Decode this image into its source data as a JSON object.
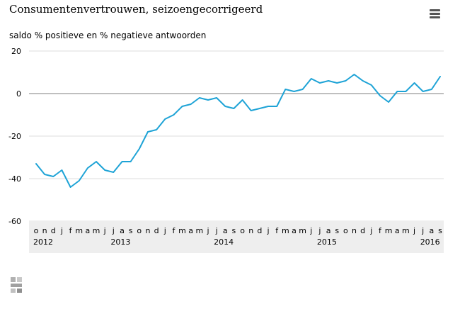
{
  "header": {
    "title": "Consumentenvertrouwen, seizoengecorrigeerd",
    "menu_icon": "hamburger-menu-icon"
  },
  "colors": {
    "series": "#1ea3d6",
    "zero_line": "#999999",
    "grid": "#dddddd",
    "axis_band": "#eeeeee"
  },
  "chart_data": {
    "type": "line",
    "title": "Consumentenvertrouwen, seizoengecorrigeerd",
    "ylabel": "saldo % positieve en % negatieve antwoorden",
    "xlabel": "",
    "ylim": [
      -60,
      20
    ],
    "yticks": [
      "20",
      "0",
      "-20",
      "-40",
      "-60"
    ],
    "grid": true,
    "legend": "none",
    "month_labels": [
      "o",
      "n",
      "d",
      "j",
      "f",
      "m",
      "a",
      "m",
      "j",
      "j",
      "a",
      "s",
      "o",
      "n",
      "d",
      "j",
      "f",
      "m",
      "a",
      "m",
      "j",
      "j",
      "a",
      "s",
      "o",
      "n",
      "d",
      "j",
      "f",
      "m",
      "a",
      "m",
      "j",
      "j",
      "a",
      "s",
      "o",
      "n",
      "d",
      "j",
      "f",
      "m",
      "a",
      "m",
      "j",
      "j",
      "a",
      "s"
    ],
    "year_labels": [
      {
        "label": "2012",
        "month_index": 0
      },
      {
        "label": "2013",
        "month_index": 9
      },
      {
        "label": "2014",
        "month_index": 21
      },
      {
        "label": "2015",
        "month_index": 33
      },
      {
        "label": "2016",
        "month_index": 45
      }
    ],
    "series": [
      {
        "values": [
          -33,
          -38,
          -39,
          -36,
          -44,
          -41,
          -35,
          -32,
          -36,
          -37,
          -32,
          -32,
          -26,
          -18,
          -17,
          -12,
          -10,
          -6,
          -5,
          -2,
          -3,
          -2,
          -6,
          -7,
          -3,
          -8,
          -7,
          -6,
          -6,
          2,
          1,
          2,
          7,
          5,
          6,
          5,
          6,
          9,
          6,
          4,
          -1,
          -4,
          1,
          1,
          5,
          1,
          2,
          8
        ]
      }
    ]
  },
  "footer": {
    "logo_icon": "cbs-logo-icon"
  }
}
